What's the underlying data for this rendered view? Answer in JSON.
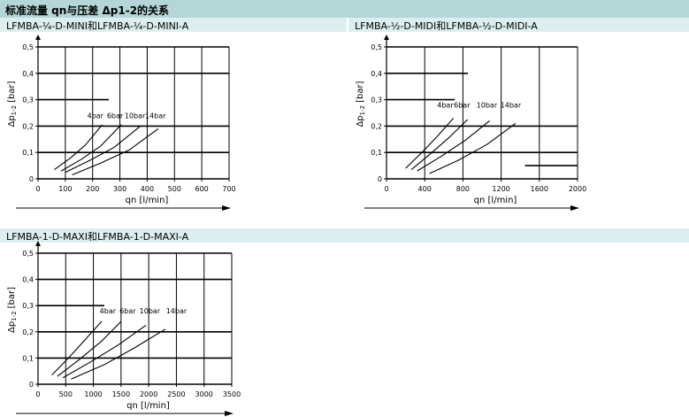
{
  "page_title": "标准流量 qn与压差 Δp1-2的关系",
  "chart_data": [
    {
      "type": "line",
      "title": "LFMBA-¼-D-MINI和LFMBA-¼-D-MINI-A",
      "xlabel": "qn [l/min]",
      "ylabel_main": "Δp",
      "ylabel_sub": "1-2",
      "ylabel_unit": "[bar]",
      "xlim": [
        0,
        700
      ],
      "ylim": [
        0,
        0.5
      ],
      "xticks": [
        0,
        100,
        200,
        300,
        400,
        500,
        600,
        700
      ],
      "yticks": [
        0,
        0.1,
        0.2,
        0.3,
        0.4,
        0.5
      ],
      "ytick_labels": [
        "0",
        "0,1",
        "0,2",
        "0,3",
        "0,4",
        "0,5"
      ],
      "series": [
        {
          "name": "4bar",
          "label_pos": [
            210,
            0.23
          ],
          "x": [
            60,
            120,
            175,
            235
          ],
          "y": [
            0.035,
            0.08,
            0.13,
            0.205
          ]
        },
        {
          "name": "6bar",
          "label_pos": [
            282,
            0.23
          ],
          "x": [
            85,
            160,
            230,
            305
          ],
          "y": [
            0.03,
            0.075,
            0.125,
            0.205
          ]
        },
        {
          "name": "10bar",
          "label_pos": [
            355,
            0.23
          ],
          "x": [
            100,
            190,
            280,
            375
          ],
          "y": [
            0.025,
            0.07,
            0.12,
            0.2
          ]
        },
        {
          "name": "14bar",
          "label_pos": [
            430,
            0.23
          ],
          "x": [
            125,
            230,
            335,
            440
          ],
          "y": [
            0.015,
            0.06,
            0.11,
            0.19
          ]
        }
      ]
    },
    {
      "type": "line",
      "title": "LFMBA-½-D-MIDI和LFMBA-½-D-MIDI-A",
      "xlabel": "qn [l/min]",
      "ylabel_main": "Δp",
      "ylabel_sub": "1-2",
      "ylabel_unit": "[bar]",
      "xlim": [
        0,
        2000
      ],
      "ylim": [
        0,
        0.5
      ],
      "xticks": [
        0,
        400,
        800,
        1200,
        1600,
        2000
      ],
      "yticks": [
        0,
        0.1,
        0.2,
        0.3,
        0.4,
        0.5
      ],
      "ytick_labels": [
        "0",
        "0,1",
        "0,2",
        "0,3",
        "0,4",
        "0,5"
      ],
      "series": [
        {
          "name": "4bar",
          "label_pos": [
            615,
            0.27
          ],
          "x": [
            200,
            370,
            530,
            700
          ],
          "y": [
            0.04,
            0.1,
            0.16,
            0.23
          ]
        },
        {
          "name": "6bar",
          "label_pos": [
            790,
            0.27
          ],
          "x": [
            260,
            460,
            650,
            850
          ],
          "y": [
            0.035,
            0.095,
            0.155,
            0.225
          ]
        },
        {
          "name": "10bar",
          "label_pos": [
            1050,
            0.27
          ],
          "x": [
            320,
            570,
            820,
            1080
          ],
          "y": [
            0.03,
            0.085,
            0.145,
            0.22
          ]
        },
        {
          "name": "14bar",
          "label_pos": [
            1300,
            0.27
          ],
          "x": [
            450,
            750,
            1050,
            1350
          ],
          "y": [
            0.02,
            0.07,
            0.13,
            0.21
          ]
        }
      ]
    },
    {
      "type": "line",
      "title": "LFMBA-1-D-MAXI和LFMBA-1-D-MAXI-A",
      "xlabel": "qn [l/min]",
      "ylabel_main": "Δp",
      "ylabel_sub": "1-2",
      "ylabel_unit": "[bar]",
      "xlim": [
        0,
        3500
      ],
      "ylim": [
        0,
        0.5
      ],
      "xticks": [
        0,
        500,
        1000,
        1500,
        2000,
        2500,
        3000,
        3500
      ],
      "yticks": [
        0,
        0.1,
        0.2,
        0.3,
        0.4,
        0.5
      ],
      "ytick_labels": [
        "0",
        "0,1",
        "0,2",
        "0,3",
        "0,4",
        "0,5"
      ],
      "series": [
        {
          "name": "4bar",
          "label_pos": [
            1260,
            0.27
          ],
          "x": [
            250,
            550,
            850,
            1150
          ],
          "y": [
            0.035,
            0.1,
            0.17,
            0.24
          ]
        },
        {
          "name": "6bar",
          "label_pos": [
            1620,
            0.27
          ],
          "x": [
            350,
            750,
            1150,
            1500
          ],
          "y": [
            0.03,
            0.095,
            0.165,
            0.24
          ]
        },
        {
          "name": "10bar",
          "label_pos": [
            2020,
            0.27
          ],
          "x": [
            450,
            950,
            1450,
            1950
          ],
          "y": [
            0.025,
            0.085,
            0.15,
            0.225
          ]
        },
        {
          "name": "14bar",
          "label_pos": [
            2500,
            0.27
          ],
          "x": [
            600,
            1200,
            1750,
            2300
          ],
          "y": [
            0.02,
            0.075,
            0.14,
            0.21
          ]
        }
      ]
    }
  ]
}
